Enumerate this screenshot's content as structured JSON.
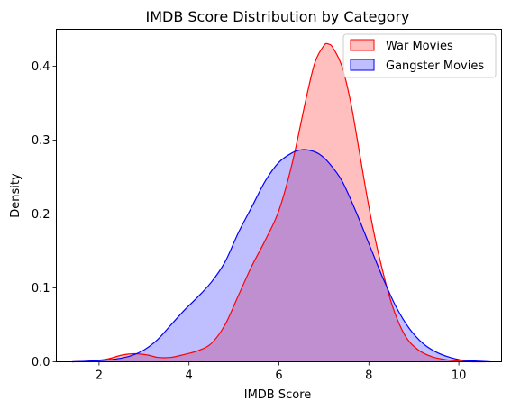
{
  "chart_data": {
    "type": "area",
    "title": "IMDB Score Distribution by Category",
    "xlabel": "IMDB Score",
    "ylabel": "Density",
    "xlim": [
      1.05,
      10.95
    ],
    "ylim": [
      0,
      0.45
    ],
    "x_ticks": [
      2,
      4,
      6,
      8,
      10
    ],
    "y_ticks": [
      0.0,
      0.1,
      0.2,
      0.3,
      0.4
    ],
    "x_tick_labels": [
      "2",
      "4",
      "6",
      "8",
      "10"
    ],
    "y_tick_labels": [
      "0.0",
      "0.1",
      "0.2",
      "0.3",
      "0.4"
    ],
    "grid": false,
    "legend_position": "top-right",
    "series": [
      {
        "name": "War Movies",
        "line_color": "#ff0000",
        "fill_color": "#ff0000",
        "fill_opacity": 0.25,
        "x": [
          1.4,
          1.8,
          2.2,
          2.5,
          2.8,
          3.1,
          3.3,
          3.6,
          3.9,
          4.2,
          4.5,
          4.8,
          5.1,
          5.4,
          5.7,
          6.0,
          6.3,
          6.6,
          6.8,
          7.0,
          7.1,
          7.2,
          7.4,
          7.6,
          7.8,
          8.0,
          8.2,
          8.5,
          8.8,
          9.1,
          9.4,
          9.7,
          10.0,
          10.3,
          10.6
        ],
        "y": [
          0.0,
          0.001,
          0.004,
          0.009,
          0.011,
          0.009,
          0.006,
          0.006,
          0.01,
          0.015,
          0.025,
          0.05,
          0.09,
          0.13,
          0.165,
          0.205,
          0.27,
          0.355,
          0.405,
          0.428,
          0.43,
          0.425,
          0.4,
          0.35,
          0.28,
          0.21,
          0.15,
          0.08,
          0.036,
          0.016,
          0.007,
          0.003,
          0.001,
          0.0,
          0.0
        ]
      },
      {
        "name": "Gangster Movies",
        "line_color": "#0000ff",
        "fill_color": "#0000ff",
        "fill_opacity": 0.25,
        "x": [
          1.4,
          1.8,
          2.1,
          2.4,
          2.7,
          3.0,
          3.3,
          3.6,
          3.9,
          4.2,
          4.5,
          4.8,
          5.1,
          5.4,
          5.7,
          6.0,
          6.3,
          6.5,
          6.7,
          6.9,
          7.1,
          7.4,
          7.7,
          8.0,
          8.3,
          8.6,
          8.9,
          9.2,
          9.5,
          9.8,
          10.1,
          10.4,
          10.7
        ],
        "y": [
          0.0,
          0.001,
          0.002,
          0.004,
          0.008,
          0.016,
          0.03,
          0.05,
          0.07,
          0.088,
          0.108,
          0.135,
          0.175,
          0.21,
          0.245,
          0.27,
          0.283,
          0.287,
          0.286,
          0.281,
          0.27,
          0.245,
          0.205,
          0.16,
          0.115,
          0.075,
          0.045,
          0.025,
          0.013,
          0.006,
          0.002,
          0.001,
          0.0
        ]
      }
    ]
  }
}
